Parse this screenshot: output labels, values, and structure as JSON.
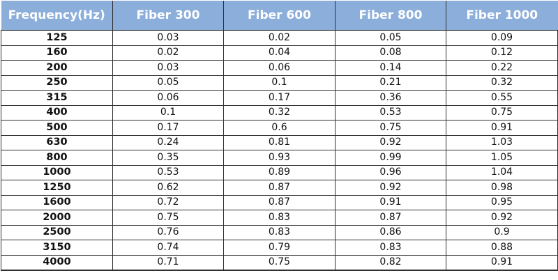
{
  "table": {
    "headers": [
      "Frequency(Hz)",
      "Fiber 300",
      "Fiber 600",
      "Fiber 800",
      "Fiber 1000"
    ],
    "rows": [
      [
        "125",
        "0.03",
        "0.02",
        "0.05",
        "0.09"
      ],
      [
        "160",
        "0.02",
        "0.04",
        "0.08",
        "0.12"
      ],
      [
        "200",
        "0.03",
        "0.06",
        "0.14",
        "0.22"
      ],
      [
        "250",
        "0.05",
        "0.1",
        "0.21",
        "0.32"
      ],
      [
        "315",
        "0.06",
        "0.17",
        "0.36",
        "0.55"
      ],
      [
        "400",
        "0.1",
        "0.32",
        "0.53",
        "0.75"
      ],
      [
        "500",
        "0.17",
        "0.6",
        "0.75",
        "0.91"
      ],
      [
        "630",
        "0.24",
        "0.81",
        "0.92",
        "1.03"
      ],
      [
        "800",
        "0.35",
        "0.93",
        "0.99",
        "1.05"
      ],
      [
        "1000",
        "0.53",
        "0.89",
        "0.96",
        "1.04"
      ],
      [
        "1250",
        "0.62",
        "0.87",
        "0.92",
        "0.98"
      ],
      [
        "1600",
        "0.72",
        "0.87",
        "0.91",
        "0.95"
      ],
      [
        "2000",
        "0.75",
        "0.83",
        "0.87",
        "0.92"
      ],
      [
        "2500",
        "0.76",
        "0.83",
        "0.86",
        "0.9"
      ],
      [
        "3150",
        "0.74",
        "0.79",
        "0.83",
        "0.88"
      ],
      [
        "4000",
        "0.71",
        "0.75",
        "0.82",
        "0.91"
      ]
    ],
    "colors": {
      "header_background": "#8caedb",
      "header_text": "#ffffff",
      "border": "#2f2f2f"
    }
  }
}
